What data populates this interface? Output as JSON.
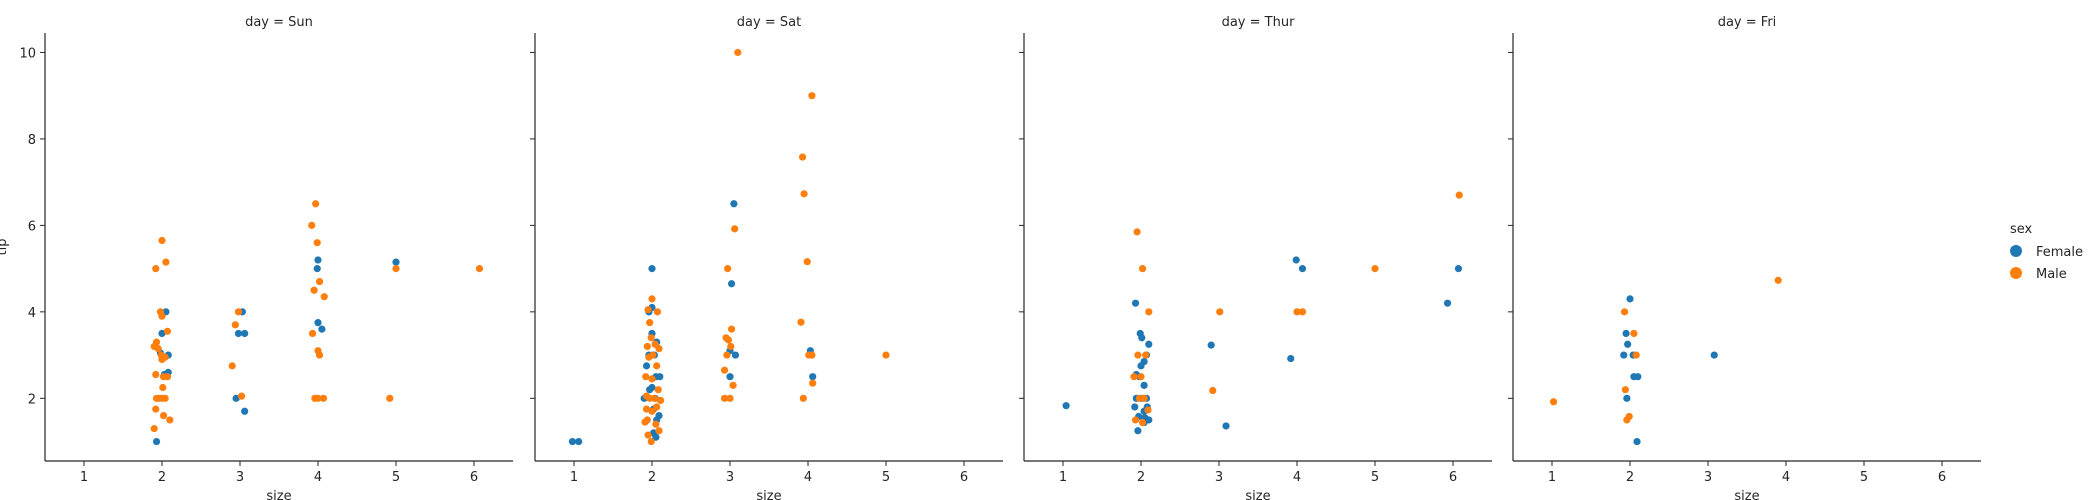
{
  "chart_data": {
    "type": "scatter",
    "xlabel": "size",
    "ylabel": "tip",
    "xticks": [
      1,
      2,
      3,
      4,
      5,
      6
    ],
    "yticks": [
      2,
      4,
      6,
      8,
      10
    ],
    "xlim": [
      0.5,
      6.5
    ],
    "ylim": [
      0.55,
      10.45
    ],
    "legend": {
      "title": "sex",
      "placement": "right",
      "entries": [
        {
          "name": "Female",
          "color": "#1f77b4"
        },
        {
          "name": "Male",
          "color": "#ff7f0e"
        }
      ]
    },
    "panels": [
      {
        "title": "day = Sun",
        "series": [
          {
            "name": "Female",
            "color": "#1f77b4",
            "points": [
              [
                1.93,
                1.0
              ],
              [
                2.0,
                3.5
              ],
              [
                2.05,
                4.0
              ],
              [
                2.08,
                2.6
              ],
              [
                2.03,
                2.55
              ],
              [
                2.08,
                3.0
              ],
              [
                1.98,
                3.05
              ],
              [
                2.95,
                2.0
              ],
              [
                2.98,
                3.5
              ],
              [
                3.03,
                4.0
              ],
              [
                3.06,
                3.5
              ],
              [
                3.06,
                1.7
              ],
              [
                4.0,
                3.75
              ],
              [
                3.99,
                5.0
              ],
              [
                4.0,
                5.2
              ],
              [
                4.05,
                3.6
              ],
              [
                5.0,
                5.15
              ]
            ]
          },
          {
            "name": "Male",
            "color": "#ff7f0e",
            "points": [
              [
                1.92,
                5.0
              ],
              [
                2.0,
                5.65
              ],
              [
                2.05,
                5.15
              ],
              [
                1.98,
                4.0
              ],
              [
                2.0,
                3.9
              ],
              [
                2.07,
                3.55
              ],
              [
                1.93,
                3.3
              ],
              [
                1.9,
                3.2
              ],
              [
                1.95,
                3.15
              ],
              [
                1.99,
                3.0
              ],
              [
                2.04,
                2.95
              ],
              [
                2.0,
                2.9
              ],
              [
                1.92,
                2.55
              ],
              [
                2.02,
                2.5
              ],
              [
                2.07,
                2.5
              ],
              [
                2.01,
                2.25
              ],
              [
                1.93,
                2.0
              ],
              [
                1.96,
                2.0
              ],
              [
                2.0,
                2.0
              ],
              [
                2.04,
                2.0
              ],
              [
                1.92,
                1.75
              ],
              [
                2.02,
                1.6
              ],
              [
                2.1,
                1.5
              ],
              [
                1.9,
                1.3
              ],
              [
                2.9,
                2.75
              ],
              [
                2.94,
                3.7
              ],
              [
                2.98,
                4.0
              ],
              [
                3.02,
                2.05
              ],
              [
                3.92,
                6.0
              ],
              [
                3.97,
                6.5
              ],
              [
                3.99,
                5.6
              ],
              [
                4.02,
                4.7
              ],
              [
                3.95,
                4.5
              ],
              [
                4.08,
                4.35
              ],
              [
                3.93,
                3.5
              ],
              [
                4.0,
                3.1
              ],
              [
                4.02,
                3.0
              ],
              [
                3.96,
                2.0
              ],
              [
                4.0,
                2.0
              ],
              [
                4.07,
                2.0
              ],
              [
                4.92,
                2.0
              ],
              [
                5.0,
                5.0
              ],
              [
                6.07,
                5.0
              ]
            ]
          }
        ]
      },
      {
        "title": "day = Sat",
        "series": [
          {
            "name": "Female",
            "color": "#1f77b4",
            "points": [
              [
                0.98,
                1.0
              ],
              [
                1.06,
                1.0
              ],
              [
                2.0,
                5.0
              ],
              [
                1.96,
                4.0
              ],
              [
                2.0,
                4.1
              ],
              [
                2.06,
                3.3
              ],
              [
                2.0,
                3.5
              ],
              [
                1.96,
                3.0
              ],
              [
                2.03,
                3.0
              ],
              [
                1.93,
                2.75
              ],
              [
                2.05,
                2.5
              ],
              [
                2.1,
                2.5
              ],
              [
                2.0,
                2.25
              ],
              [
                1.97,
                2.2
              ],
              [
                2.04,
                2.0
              ],
              [
                1.9,
                2.0
              ],
              [
                2.02,
                1.75
              ],
              [
                2.09,
                1.6
              ],
              [
                2.06,
                1.5
              ],
              [
                2.02,
                1.2
              ],
              [
                2.05,
                1.1
              ],
              [
                3.05,
                6.5
              ],
              [
                3.02,
                4.65
              ],
              [
                3.0,
                3.1
              ],
              [
                3.07,
                3.0
              ],
              [
                3.0,
                2.5
              ],
              [
                4.03,
                3.1
              ],
              [
                4.06,
                2.5
              ]
            ]
          },
          {
            "name": "Male",
            "color": "#ff7f0e",
            "points": [
              [
                2.0,
                4.3
              ],
              [
                1.95,
                4.05
              ],
              [
                2.07,
                4.0
              ],
              [
                1.97,
                3.75
              ],
              [
                1.99,
                3.4
              ],
              [
                2.04,
                3.25
              ],
              [
                1.94,
                3.2
              ],
              [
                2.09,
                3.15
              ],
              [
                2.01,
                3.0
              ],
              [
                1.96,
                2.95
              ],
              [
                2.06,
                2.75
              ],
              [
                1.92,
                2.5
              ],
              [
                2.0,
                2.45
              ],
              [
                2.08,
                2.2
              ],
              [
                1.93,
                2.05
              ],
              [
                1.97,
                2.0
              ],
              [
                2.03,
                2.0
              ],
              [
                2.11,
                1.95
              ],
              [
                2.06,
                1.8
              ],
              [
                1.93,
                1.75
              ],
              [
                2.0,
                1.7
              ],
              [
                1.94,
                1.5
              ],
              [
                1.91,
                1.45
              ],
              [
                2.05,
                1.4
              ],
              [
                2.09,
                1.25
              ],
              [
                1.95,
                1.15
              ],
              [
                1.99,
                1.0
              ],
              [
                3.1,
                10.0
              ],
              [
                3.06,
                5.92
              ],
              [
                2.97,
                5.0
              ],
              [
                3.02,
                3.6
              ],
              [
                2.95,
                3.4
              ],
              [
                2.98,
                3.35
              ],
              [
                3.01,
                3.2
              ],
              [
                2.96,
                3.0
              ],
              [
                2.93,
                2.65
              ],
              [
                3.04,
                2.3
              ],
              [
                2.93,
                2.0
              ],
              [
                3.0,
                2.0
              ],
              [
                4.05,
                9.0
              ],
              [
                3.93,
                7.58
              ],
              [
                3.95,
                6.73
              ],
              [
                3.99,
                5.16
              ],
              [
                3.91,
                3.76
              ],
              [
                4.01,
                3.0
              ],
              [
                4.05,
                3.0
              ],
              [
                4.06,
                2.35
              ],
              [
                3.94,
                2.0
              ],
              [
                5.0,
                3.0
              ]
            ]
          }
        ]
      },
      {
        "title": "day = Thur",
        "series": [
          {
            "name": "Female",
            "color": "#1f77b4",
            "points": [
              [
                1.04,
                1.83
              ],
              [
                1.93,
                4.2
              ],
              [
                1.99,
                3.5
              ],
              [
                2.01,
                3.4
              ],
              [
                2.1,
                3.25
              ],
              [
                2.07,
                3.0
              ],
              [
                2.04,
                2.85
              ],
              [
                2.0,
                2.75
              ],
              [
                1.94,
                2.55
              ],
              [
                1.98,
                2.5
              ],
              [
                2.04,
                2.3
              ],
              [
                2.07,
                2.0
              ],
              [
                1.94,
                2.0
              ],
              [
                2.01,
                2.0
              ],
              [
                2.08,
                1.8
              ],
              [
                1.92,
                1.8
              ],
              [
                2.04,
                1.7
              ],
              [
                1.97,
                1.58
              ],
              [
                2.05,
                1.55
              ],
              [
                2.1,
                1.5
              ],
              [
                1.96,
                1.25
              ],
              [
                2.04,
                1.44
              ],
              [
                2.9,
                3.23
              ],
              [
                3.09,
                1.36
              ],
              [
                3.92,
                2.92
              ],
              [
                3.99,
                5.2
              ],
              [
                4.07,
                5.0
              ],
              [
                5.93,
                4.2
              ],
              [
                6.07,
                5.0
              ]
            ]
          },
          {
            "name": "Male",
            "color": "#ff7f0e",
            "points": [
              [
                1.95,
                5.85
              ],
              [
                2.02,
                5.0
              ],
              [
                2.1,
                4.0
              ],
              [
                1.96,
                3.0
              ],
              [
                2.06,
                3.0
              ],
              [
                1.91,
                2.5
              ],
              [
                2.0,
                2.5
              ],
              [
                2.04,
                2.0
              ],
              [
                1.98,
                2.0
              ],
              [
                2.09,
                1.73
              ],
              [
                1.93,
                1.5
              ],
              [
                2.02,
                1.44
              ],
              [
                2.92,
                2.18
              ],
              [
                3.01,
                4.0
              ],
              [
                4.0,
                4.0
              ],
              [
                4.07,
                4.0
              ],
              [
                5.0,
                5.0
              ],
              [
                6.08,
                6.7
              ]
            ]
          }
        ]
      },
      {
        "title": "day = Fri",
        "series": [
          {
            "name": "Female",
            "color": "#1f77b4",
            "points": [
              [
                2.0,
                4.3
              ],
              [
                1.95,
                3.5
              ],
              [
                1.97,
                3.25
              ],
              [
                2.04,
                3.0
              ],
              [
                1.92,
                3.0
              ],
              [
                2.05,
                2.5
              ],
              [
                2.1,
                2.5
              ],
              [
                1.96,
                2.0
              ],
              [
                2.09,
                1.0
              ],
              [
                3.08,
                3.0
              ]
            ]
          },
          {
            "name": "Male",
            "color": "#ff7f0e",
            "points": [
              [
                1.02,
                1.92
              ],
              [
                1.93,
                4.0
              ],
              [
                2.05,
                3.5
              ],
              [
                2.08,
                3.0
              ],
              [
                1.94,
                2.2
              ],
              [
                1.99,
                1.58
              ],
              [
                1.96,
                1.5
              ],
              [
                3.9,
                4.73
              ]
            ]
          }
        ]
      }
    ]
  }
}
